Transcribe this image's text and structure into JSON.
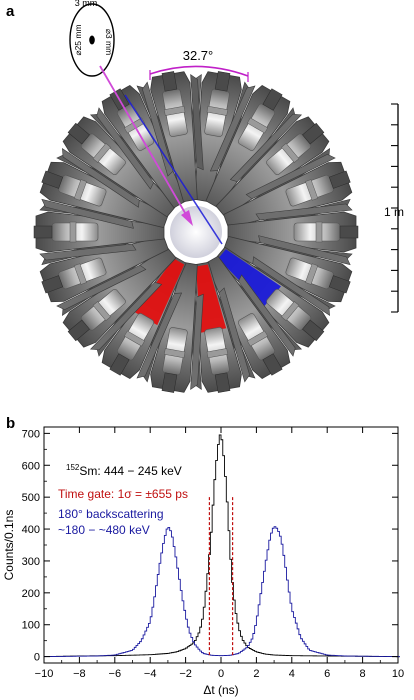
{
  "panel_a": {
    "label": "a",
    "angle_label": "32.7°",
    "scale_label": "1 m",
    "target": {
      "thickness_label": "3 mm",
      "diameter_label": "⌀25 mm",
      "spot_label": "⌀3 mm"
    },
    "colors": {
      "beam": "#d04ad8",
      "highlight_red": "#e01010",
      "highlight_blue": "#1a1ad8",
      "detector": "#7a7a7a"
    }
  },
  "panel_b": {
    "label": "b"
  },
  "chart_data": {
    "type": "line",
    "xlabel": "Δt (ns)",
    "ylabel": "Counts/0.1ns",
    "xlim": [
      -10,
      10
    ],
    "ylim": [
      -20,
      720
    ],
    "xticks": [
      -10,
      -8,
      -6,
      -4,
      -2,
      0,
      2,
      4,
      6,
      8,
      10
    ],
    "yticks": [
      0,
      100,
      200,
      300,
      400,
      500,
      600,
      700
    ],
    "legend": [
      {
        "prefix": "152",
        "text": "Sm: 444 − 245 keV",
        "color": "#000000"
      },
      {
        "text": "Time gate: 1σ = ±655 ps",
        "color": "#c01010"
      },
      {
        "text": "180° backscattering",
        "color": "#1a1aa0"
      },
      {
        "text": "~180 − ~480 keV",
        "color": "#1a1aa0"
      }
    ],
    "gate_lines": [
      -0.655,
      0.655
    ],
    "series": [
      {
        "color": "#000000",
        "x": [
          -10,
          -8,
          -6,
          -4,
          -3,
          -2.5,
          -2,
          -1.5,
          -1.2,
          -1.0,
          -0.8,
          -0.6,
          -0.5,
          -0.4,
          -0.3,
          -0.2,
          -0.1,
          0.0,
          0.1,
          0.2,
          0.3,
          0.4,
          0.5,
          0.6,
          0.8,
          1.0,
          1.2,
          1.5,
          2,
          2.5,
          3,
          4,
          6,
          8,
          10
        ],
        "y": [
          0,
          2,
          3,
          6,
          10,
          15,
          25,
          45,
          80,
          130,
          230,
          350,
          430,
          520,
          590,
          640,
          690,
          700,
          660,
          600,
          530,
          440,
          350,
          260,
          150,
          90,
          55,
          30,
          15,
          8,
          5,
          3,
          2,
          1,
          0
        ]
      },
      {
        "color": "#1a1aa0",
        "x": [
          -10,
          -7,
          -6,
          -5,
          -4.5,
          -4,
          -3.8,
          -3.6,
          -3.4,
          -3.2,
          -3.0,
          -2.8,
          -2.6,
          -2.4,
          -2.2,
          -2.0,
          -1.8,
          -1.5,
          -1.2,
          -1.0,
          -0.5,
          0,
          0.5,
          1.0,
          1.5,
          1.8,
          2.0,
          2.2,
          2.4,
          2.6,
          2.8,
          3.0,
          3.2,
          3.4,
          3.6,
          3.8,
          4.0,
          4.5,
          5,
          6,
          7,
          10
        ],
        "y": [
          0,
          2,
          5,
          20,
          50,
          110,
          170,
          240,
          310,
          370,
          410,
          390,
          330,
          260,
          190,
          130,
          80,
          40,
          20,
          10,
          4,
          3,
          4,
          10,
          30,
          60,
          110,
          180,
          250,
          320,
          380,
          410,
          400,
          370,
          300,
          220,
          150,
          60,
          20,
          5,
          2,
          0
        ]
      }
    ]
  }
}
